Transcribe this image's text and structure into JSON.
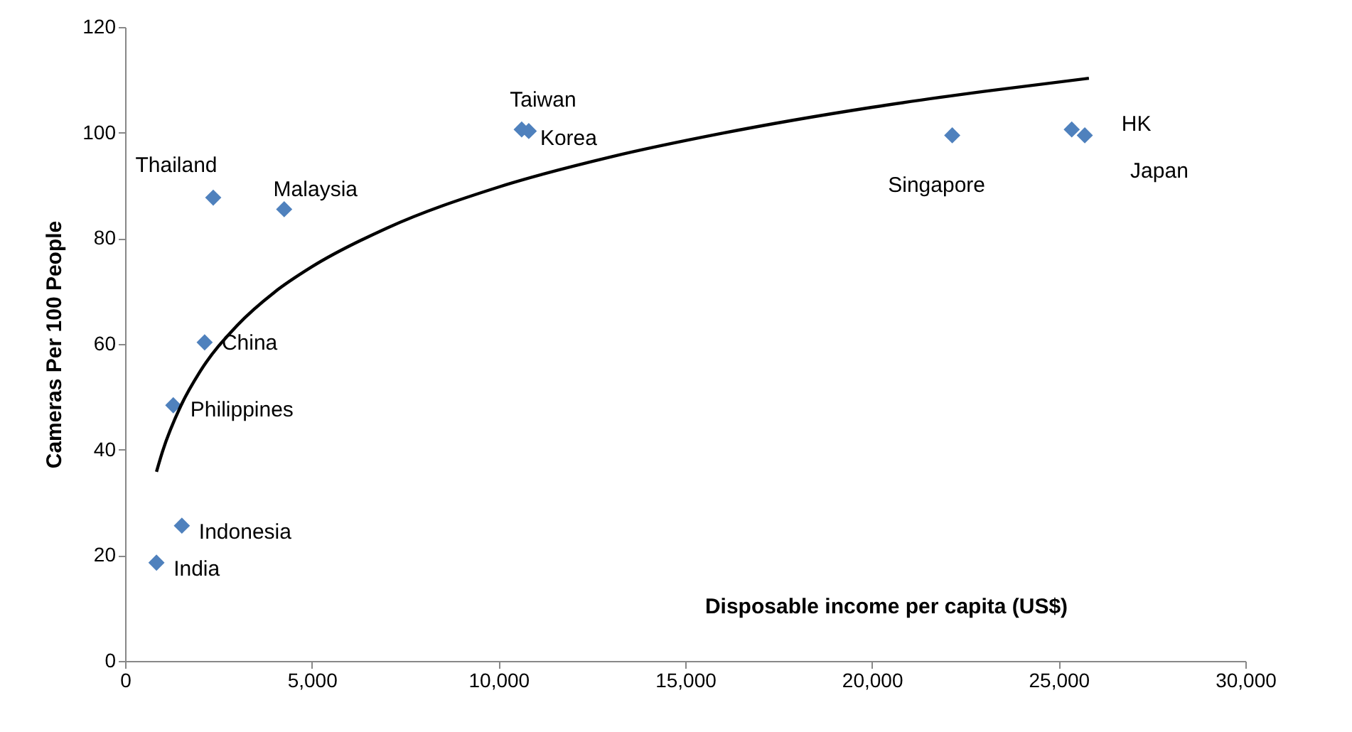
{
  "chart_data": {
    "type": "scatter",
    "xlabel": "Disposable income per capita (US$)",
    "ylabel": "Cameras Per 100 People",
    "xlim": [
      0,
      30000
    ],
    "ylim": [
      0,
      120
    ],
    "xticks": [
      0,
      {
        "value": 5000,
        "label": "5,000"
      },
      {
        "value": 10000,
        "label": "10,000"
      },
      {
        "value": 15000,
        "label": "15,000"
      },
      {
        "value": 20000,
        "label": "20,000"
      },
      {
        "value": 25000,
        "label": "25,000"
      },
      {
        "value": 30000,
        "label": "30,000"
      }
    ],
    "yticks": [
      0,
      20,
      40,
      60,
      80,
      100,
      120
    ],
    "grid": false,
    "series": [
      {
        "type": "scatter",
        "marker": "diamond",
        "color": "#4f81bd",
        "x": [
          840,
          1520,
          1290,
          2130,
          2360,
          4260,
          10620,
          10810,
          22150,
          25350,
          25700
        ],
        "values": [
          18.6,
          25.6,
          48.4,
          60.3,
          87.7,
          85.5,
          100.6,
          100.3,
          99.5,
          100.6,
          99.5
        ]
      },
      {
        "type": "line",
        "marker": "none",
        "line_style": "solid",
        "color": "#000000",
        "x": [
          840,
          1000,
          1500,
          2000,
          3000,
          4000,
          5000,
          7000,
          10000,
          13000,
          16000,
          20000,
          23000,
          25810
        ],
        "values": [
          35.8,
          39.6,
          48.4,
          54.7,
          63.5,
          69.8,
          74.6,
          81.9,
          89.7,
          95.4,
          99.9,
          104.8,
          107.8,
          110.3
        ]
      }
    ],
    "annotations": [
      {
        "text": "India",
        "x": 840,
        "y": 18.6
      },
      {
        "text": "Indonesia",
        "x": 1520,
        "y": 25.6
      },
      {
        "text": "Philippines",
        "x": 1290,
        "y": 48.4
      },
      {
        "text": "China",
        "x": 2130,
        "y": 60.3
      },
      {
        "text": "Thailand",
        "x": 2360,
        "y": 87.7
      },
      {
        "text": "Malaysia",
        "x": 4260,
        "y": 85.5
      },
      {
        "text": "Taiwan",
        "x": 10620,
        "y": 100.6
      },
      {
        "text": "Korea",
        "x": 10810,
        "y": 100.3
      },
      {
        "text": "Singapore",
        "x": 22150,
        "y": 99.5
      },
      {
        "text": "HK",
        "x": 25350,
        "y": 100.6
      },
      {
        "text": "Japan",
        "x": 25700,
        "y": 99.5
      }
    ]
  }
}
